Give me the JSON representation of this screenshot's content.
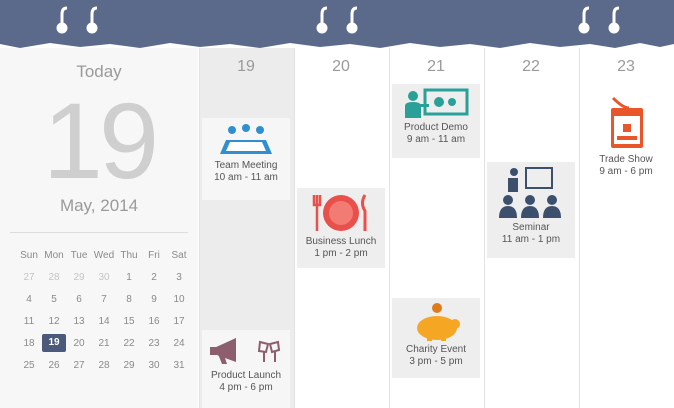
{
  "today_panel": {
    "label": "Today",
    "day": "19",
    "month_year": "May, 2014"
  },
  "mini_calendar": {
    "weekdays": [
      "Sun",
      "Mon",
      "Tue",
      "Wed",
      "Thu",
      "Fri",
      "Sat"
    ],
    "weeks": [
      [
        27,
        28,
        29,
        30,
        1,
        2,
        3
      ],
      [
        4,
        5,
        6,
        7,
        8,
        9,
        10
      ],
      [
        11,
        12,
        13,
        14,
        15,
        16,
        17
      ],
      [
        18,
        19,
        20,
        21,
        22,
        23,
        24
      ],
      [
        25,
        26,
        27,
        28,
        29,
        30,
        31
      ]
    ]
  },
  "days": [
    {
      "label": "19",
      "events": [
        {
          "title": "Team Meeting",
          "time": "10 am - 11 am"
        },
        {
          "title": "Product Launch",
          "time": "4 pm - 6 pm"
        }
      ]
    },
    {
      "label": "20",
      "events": [
        {
          "title": "Business Lunch",
          "time": "1 pm - 2 pm"
        }
      ]
    },
    {
      "label": "21",
      "events": [
        {
          "title": "Product Demo",
          "time": "9 am - 11 am"
        },
        {
          "title": "Charity Event",
          "time": "3 pm - 5 pm"
        }
      ]
    },
    {
      "label": "22",
      "events": [
        {
          "title": "Seminar",
          "time": "11 am - 1 pm"
        }
      ]
    },
    {
      "label": "23",
      "events": [
        {
          "title": "Trade Show",
          "time": "9 am - 6 pm"
        }
      ]
    }
  ]
}
